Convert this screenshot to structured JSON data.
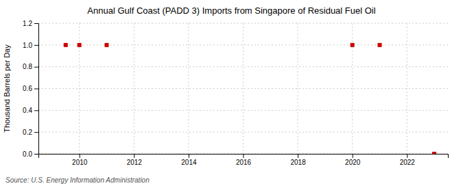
{
  "chart_data": {
    "type": "scatter",
    "title": "Annual Gulf Coast (PADD 3) Imports from Singapore of Residual Fuel Oil",
    "ylabel": "Thousand Barrels per Day",
    "source": "Source: U.S. Energy Information Administration",
    "x": [
      2009.5,
      2010,
      2011,
      2020,
      2021,
      2023
    ],
    "values": [
      1.0,
      1.0,
      1.0,
      1.0,
      1.0,
      0.0
    ],
    "color": "#cc0000",
    "marker": "square",
    "xlim": [
      2008.5,
      2023.5
    ],
    "ylim": [
      0.0,
      1.2
    ],
    "xticks": [
      2010,
      2012,
      2014,
      2016,
      2018,
      2020,
      2022
    ],
    "yticks": [
      {
        "value": 0.0,
        "label": "0.0"
      },
      0.2,
      0.4,
      0.6,
      0.8,
      {
        "value": 1.0,
        "label": "1.0"
      },
      1.2
    ],
    "grid": true
  }
}
